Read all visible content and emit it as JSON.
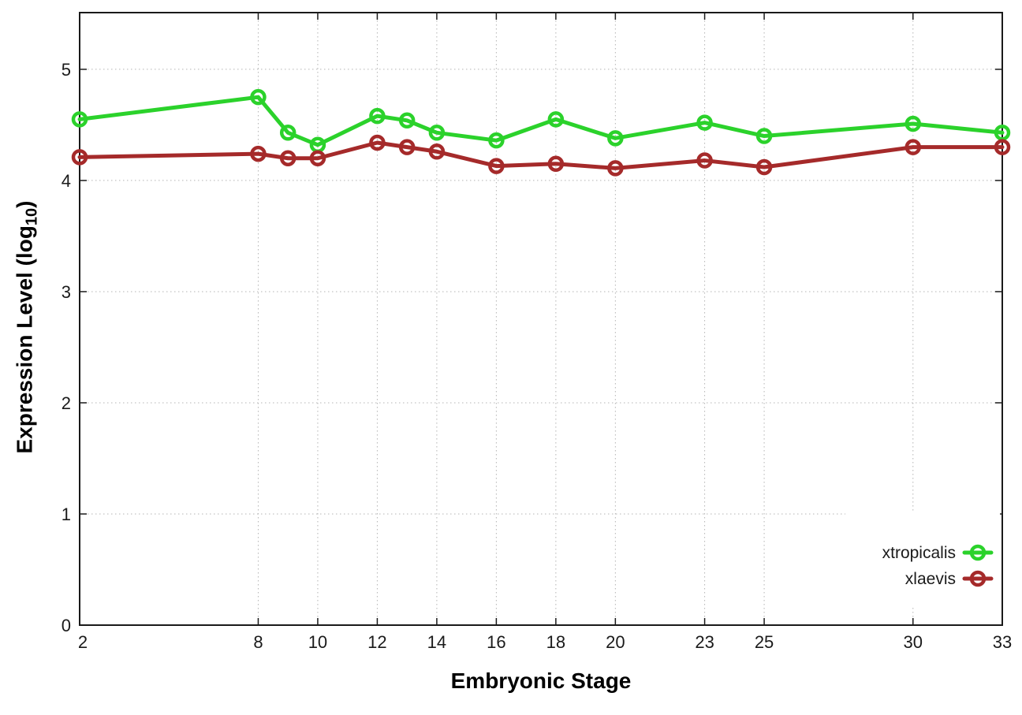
{
  "chart_data": {
    "type": "line",
    "title": "",
    "xlabel": "Embryonic Stage",
    "ylabel": "Expression Level (log10)",
    "ylabel_parts": {
      "prefix": "Expression Level (log",
      "sub": "10",
      "suffix": ")"
    },
    "x": [
      2,
      8,
      9,
      10,
      12,
      13,
      14,
      16,
      18,
      20,
      23,
      25,
      30,
      33
    ],
    "series": [
      {
        "name": "xtropicalis",
        "color": "#2bd22b",
        "values": [
          4.55,
          4.75,
          4.43,
          4.32,
          4.58,
          4.54,
          4.43,
          4.36,
          4.55,
          4.38,
          4.52,
          4.4,
          4.51,
          4.43
        ]
      },
      {
        "name": "xlaevis",
        "color": "#a52a2a",
        "values": [
          4.21,
          4.24,
          4.2,
          4.2,
          4.34,
          4.3,
          4.26,
          4.13,
          4.15,
          4.11,
          4.18,
          4.12,
          4.3,
          4.3
        ]
      }
    ],
    "x_ticks": [
      2,
      8,
      10,
      12,
      14,
      16,
      18,
      20,
      23,
      25,
      30,
      33
    ],
    "x_tick_labels": [
      "2",
      "8",
      "10",
      "12",
      "14",
      "16",
      "18",
      "20",
      "23",
      "25",
      "30",
      "33"
    ],
    "y_ticks": [
      0,
      1,
      2,
      3,
      4,
      5
    ],
    "y_tick_labels": [
      "0",
      "1",
      "2",
      "3",
      "4",
      "5"
    ],
    "xlim": [
      2,
      33
    ],
    "ylim": [
      0,
      5.51
    ],
    "grid": true,
    "grid_color": "#b4b4b4",
    "axis_color": "#1a1a1a",
    "background_color": "#ffffff",
    "legend_position": "inside-bottom-right",
    "marker": "open-circle"
  }
}
